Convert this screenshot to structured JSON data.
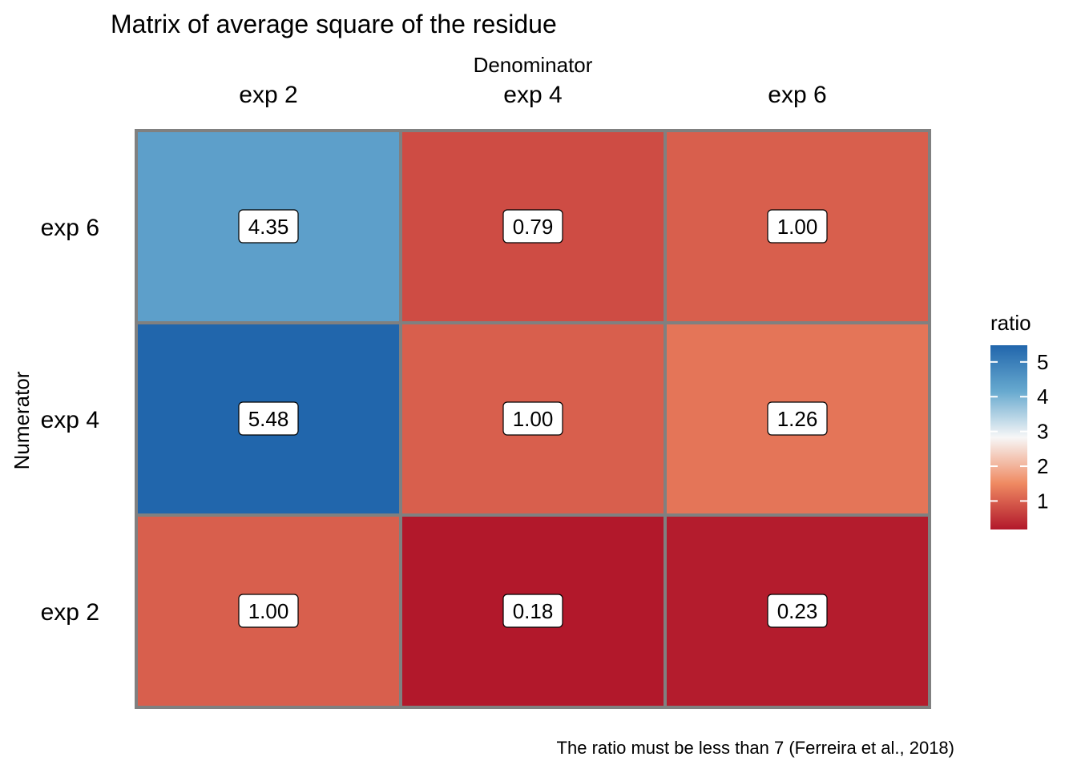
{
  "chart_data": {
    "type": "heatmap",
    "title": "Matrix of average square of the residue",
    "xlabel": "Denominator",
    "ylabel": "Numerator",
    "x_categories": [
      "exp 2",
      "exp 4",
      "exp 6"
    ],
    "y_categories": [
      "exp 6",
      "exp 4",
      "exp 2"
    ],
    "values": [
      [
        4.35,
        0.79,
        1.0
      ],
      [
        5.48,
        1.0,
        1.26
      ],
      [
        1.0,
        0.18,
        0.23
      ]
    ],
    "value_labels": [
      [
        "4.35",
        "0.79",
        "1.00"
      ],
      [
        "5.48",
        "1.00",
        "1.26"
      ],
      [
        "1.00",
        "0.18",
        "0.23"
      ]
    ],
    "legend": {
      "title": "ratio",
      "placement": "right",
      "ticks": [
        1,
        2,
        3,
        4,
        5
      ],
      "range": [
        0.18,
        5.48
      ]
    },
    "colors": {
      "low": "#b2182b",
      "mid_low": "#ef8a62",
      "mid": "#f7f7f7",
      "mid_high": "#67a9cf",
      "high": "#2166ac",
      "cell_border": "#808080"
    },
    "caption": "The ratio must be less than 7 (Ferreira et al., 2018)"
  }
}
